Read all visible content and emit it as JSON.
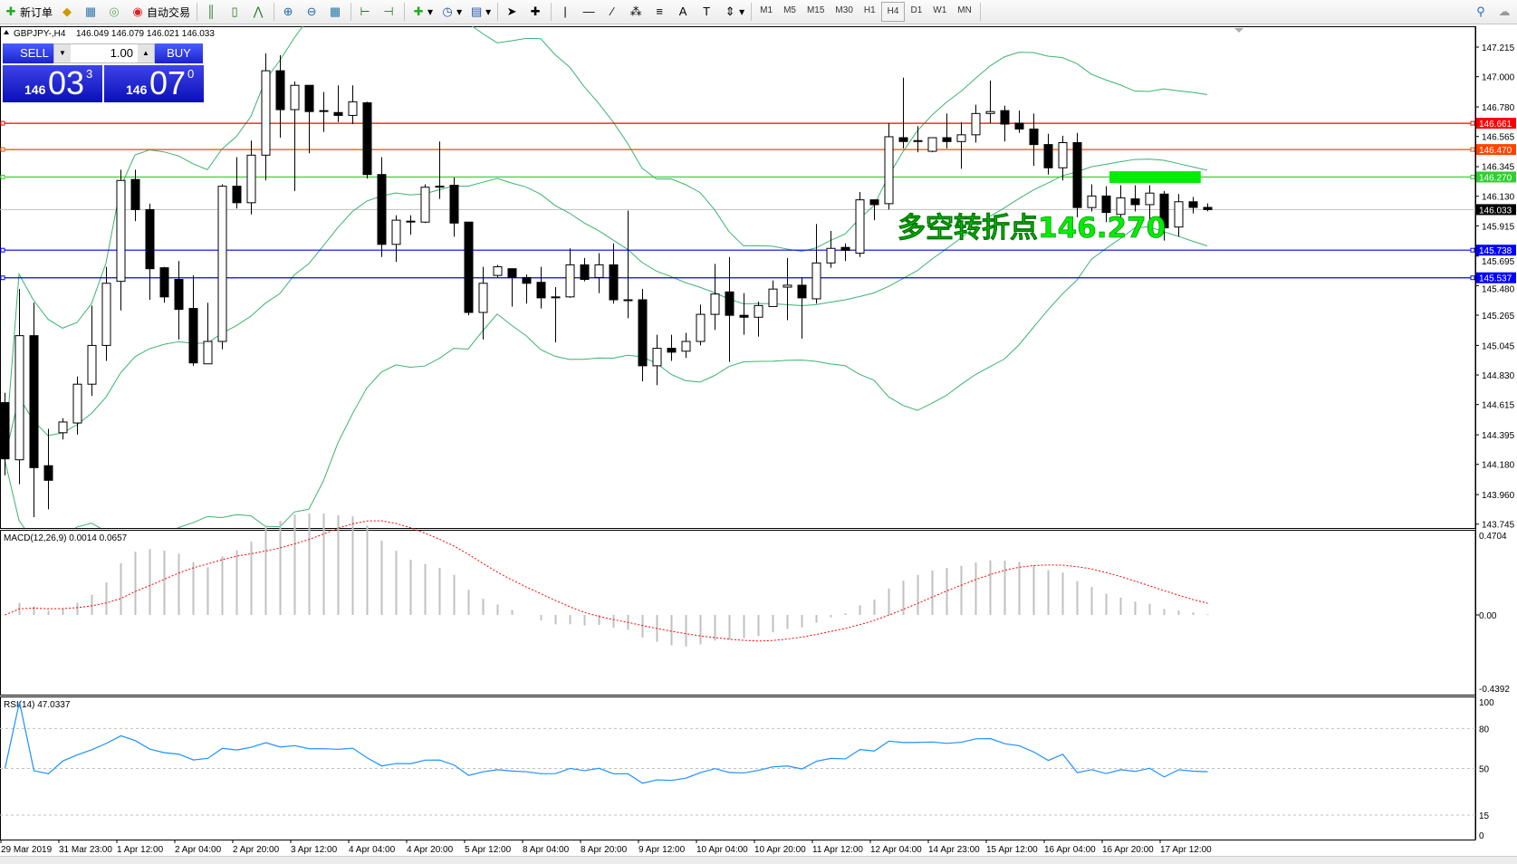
{
  "toolbar": {
    "new_order_label": "新订单",
    "auto_trading_label": "自动交易",
    "timeframes": [
      "M1",
      "M5",
      "M15",
      "M30",
      "H1",
      "H4",
      "D1",
      "W1",
      "MN"
    ],
    "active_timeframe": "H4"
  },
  "chart_header": {
    "symbol_label": "GBPJPY-,H4",
    "ohlc_label": "146.049 146.079 146.021 146.033"
  },
  "one_click": {
    "sell_label": "SELL",
    "buy_label": "BUY",
    "lot_value": "1.00",
    "sell_price_prefix": "146",
    "sell_price_main": "03",
    "sell_price_sup": "3",
    "buy_price_prefix": "146",
    "buy_price_main": "07",
    "buy_price_sup": "0"
  },
  "annotation": {
    "text": "多空转折点146.270",
    "color": "#00ee00",
    "box_price_range": [
      146.227,
      146.312
    ],
    "box_bar_range": [
      76.5,
      82.8
    ]
  },
  "chart_data": {
    "type": "candlestick",
    "timeframe": "H4",
    "price_axis_ticks": [
      "147.215",
      "147.000",
      "146.780",
      "146.565",
      "146.345",
      "146.130",
      "145.915",
      "145.695",
      "145.480",
      "145.265",
      "145.045",
      "144.830",
      "144.615",
      "144.395",
      "144.180",
      "143.960",
      "143.745"
    ],
    "price_range": [
      143.745,
      147.215
    ],
    "time_labels": [
      "29 Mar 2019",
      "31 Mar 23:00",
      "1 Apr 12:00",
      "2 Apr 04:00",
      "2 Apr 20:00",
      "3 Apr 12:00",
      "4 Apr 04:00",
      "4 Apr 20:00",
      "5 Apr 12:00",
      "8 Apr 04:00",
      "8 Apr 20:00",
      "9 Apr 12:00",
      "10 Apr 04:00",
      "10 Apr 20:00",
      "11 Apr 12:00",
      "12 Apr 04:00",
      "14 Apr 23:00",
      "15 Apr 12:00",
      "16 Apr 04:00",
      "16 Apr 20:00",
      "17 Apr 12:00"
    ],
    "time_label_every_bars": 4,
    "candles_ohlc": [
      [
        144.629,
        144.7,
        144.1,
        144.22
      ],
      [
        144.213,
        145.455,
        144.036,
        145.116
      ],
      [
        145.116,
        145.356,
        143.796,
        144.156
      ],
      [
        144.17,
        144.438,
        143.853,
        144.064
      ],
      [
        144.41,
        144.516,
        144.361,
        144.488
      ],
      [
        144.481,
        144.819,
        144.396,
        144.763
      ],
      [
        144.763,
        145.335,
        144.678,
        145.045
      ],
      [
        145.045,
        145.617,
        144.932,
        145.497
      ],
      [
        145.511,
        146.323,
        145.3,
        146.245
      ],
      [
        146.252,
        146.323,
        145.949,
        146.033
      ],
      [
        146.033,
        146.076,
        145.377,
        145.603
      ],
      [
        145.61,
        145.617,
        145.356,
        145.398
      ],
      [
        145.525,
        145.659,
        145.088,
        145.307
      ],
      [
        145.314,
        145.554,
        144.897,
        144.918
      ],
      [
        144.911,
        145.356,
        144.911,
        145.074
      ],
      [
        145.074,
        146.217,
        145.017,
        146.203
      ],
      [
        146.203,
        146.415,
        146.041,
        146.083
      ],
      [
        146.083,
        146.535,
        145.998,
        146.429
      ],
      [
        146.429,
        147.17,
        146.245,
        147.043
      ],
      [
        147.043,
        147.156,
        146.556,
        146.76
      ],
      [
        146.76,
        146.965,
        146.168,
        146.937
      ],
      [
        146.937,
        146.937,
        146.443,
        146.746
      ],
      [
        146.753,
        146.888,
        146.598,
        146.75
      ],
      [
        146.739,
        146.937,
        146.669,
        146.718
      ],
      [
        146.718,
        146.937,
        146.655,
        146.817
      ],
      [
        146.81,
        146.817,
        146.259,
        146.288
      ],
      [
        146.288,
        146.415,
        145.688,
        145.78
      ],
      [
        145.78,
        145.991,
        145.652,
        145.956
      ],
      [
        145.949,
        145.991,
        145.85,
        145.945
      ],
      [
        145.942,
        146.217,
        145.935,
        146.196
      ],
      [
        146.2,
        146.528,
        146.111,
        146.203
      ],
      [
        146.21,
        146.266,
        145.836,
        145.935
      ],
      [
        145.942,
        145.942,
        145.264,
        145.285
      ],
      [
        145.285,
        145.617,
        145.088,
        145.497
      ],
      [
        145.554,
        145.631,
        145.539,
        145.617
      ],
      [
        145.603,
        145.603,
        145.328,
        145.539
      ],
      [
        145.539,
        145.561,
        145.349,
        145.497
      ],
      [
        145.504,
        145.617,
        145.314,
        145.391
      ],
      [
        145.398,
        145.469,
        145.067,
        145.395
      ],
      [
        145.398,
        145.751,
        145.391,
        145.631
      ],
      [
        145.631,
        145.681,
        145.511,
        145.525
      ],
      [
        145.539,
        145.716,
        145.426,
        145.631
      ],
      [
        145.631,
        145.787,
        145.349,
        145.377
      ],
      [
        145.377,
        146.026,
        145.243,
        145.375
      ],
      [
        145.377,
        145.455,
        144.784,
        144.897
      ],
      [
        144.897,
        145.123,
        144.756,
        145.024
      ],
      [
        145.024,
        145.123,
        144.932,
        144.996
      ],
      [
        145.003,
        145.137,
        144.954,
        145.074
      ],
      [
        145.074,
        145.342,
        145.045,
        145.271
      ],
      [
        145.271,
        145.638,
        145.158,
        145.419
      ],
      [
        145.434,
        145.688,
        144.925,
        145.264
      ],
      [
        145.264,
        145.426,
        145.123,
        145.25
      ],
      [
        145.25,
        145.363,
        145.109,
        145.335
      ],
      [
        145.328,
        145.518,
        145.328,
        145.455
      ],
      [
        145.469,
        145.681,
        145.229,
        145.483
      ],
      [
        145.483,
        145.539,
        145.095,
        145.391
      ],
      [
        145.384,
        145.928,
        145.349,
        145.645
      ],
      [
        145.645,
        145.878,
        145.61,
        145.751
      ],
      [
        145.758,
        145.787,
        145.659,
        145.737
      ],
      [
        145.716,
        146.161,
        145.688,
        146.104
      ],
      [
        146.104,
        146.104,
        145.956,
        146.069
      ],
      [
        146.076,
        146.662,
        146.033,
        146.563
      ],
      [
        146.556,
        146.993,
        146.478,
        146.528
      ],
      [
        146.528,
        146.64,
        146.45,
        146.535
      ],
      [
        146.457,
        146.556,
        146.45,
        146.556
      ],
      [
        146.556,
        146.732,
        146.478,
        146.528
      ],
      [
        146.528,
        146.669,
        146.33,
        146.577
      ],
      [
        146.577,
        146.796,
        146.52,
        146.732
      ],
      [
        146.732,
        146.972,
        146.662,
        146.746
      ],
      [
        146.753,
        146.789,
        146.528,
        146.655
      ],
      [
        146.662,
        146.753,
        146.591,
        146.619
      ],
      [
        146.619,
        146.732,
        146.351,
        146.506
      ],
      [
        146.506,
        146.584,
        146.288,
        146.337
      ],
      [
        146.337,
        146.57,
        146.245,
        146.52
      ],
      [
        146.52,
        146.591,
        145.977,
        146.048
      ],
      [
        146.048,
        146.217,
        146.019,
        146.132
      ],
      [
        146.132,
        146.203,
        145.942,
        146.012
      ],
      [
        145.998,
        146.21,
        145.963,
        146.118
      ],
      [
        146.111,
        146.21,
        146.019,
        146.069
      ],
      [
        146.069,
        146.21,
        145.963,
        146.153
      ],
      [
        146.146,
        146.168,
        145.808,
        145.9
      ],
      [
        145.906,
        146.146,
        145.836,
        146.09
      ],
      [
        146.09,
        146.125,
        146.005,
        146.049
      ],
      [
        146.049,
        146.079,
        146.021,
        146.033
      ]
    ],
    "horizontal_lines": [
      {
        "price": 146.661,
        "label": "146.661",
        "color": "#ff0000"
      },
      {
        "price": 146.47,
        "label": "146.470",
        "color": "#ff4500"
      },
      {
        "price": 146.27,
        "label": "146.270",
        "color": "#32cd32"
      },
      {
        "price": 145.738,
        "label": "145.738",
        "color": "#0000ff"
      },
      {
        "price": 145.537,
        "label": "145.537",
        "color": "#0000ff"
      }
    ],
    "bid_line": {
      "price": 146.033,
      "label": "146.033",
      "color": "#c0c0c0"
    },
    "bollinger": {
      "period": 20,
      "deviation": 2,
      "color": "#3cb371"
    },
    "macd": {
      "label": "MACD(12,26,9) 0.0014 0.0657",
      "axis_max_label": "0.4704",
      "axis_zero_label": "0.00",
      "axis_min_label": "-0.4392",
      "range": [
        -0.4392,
        0.4704
      ],
      "fast": 12,
      "slow": 26,
      "signal": 9,
      "histogram_color": "#c0c0c0",
      "signal_color": "#ff0000"
    },
    "rsi": {
      "label": "RSI(14) 47.0337",
      "period": 14,
      "levels": [
        80,
        50,
        15
      ],
      "axis_labels": [
        "100",
        "80",
        "50",
        "15",
        "0"
      ],
      "range": [
        0,
        100
      ],
      "color": "#1e90ff"
    }
  }
}
